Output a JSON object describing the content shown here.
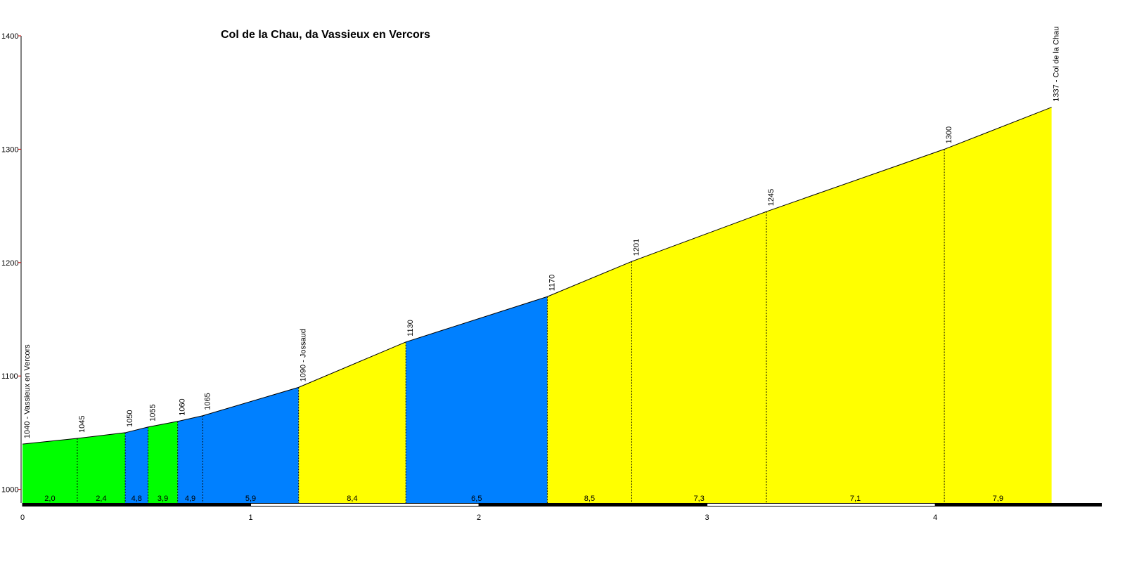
{
  "chart_data": {
    "type": "elevation-profile",
    "title": "Col de la Chau, da Vassieux en Vercors",
    "x": [
      0,
      0.24,
      0.45,
      0.55,
      0.68,
      0.79,
      1.21,
      1.68,
      2.3,
      2.67,
      3.26,
      4.04,
      4.51
    ],
    "values": [
      1040,
      1045,
      1050,
      1055,
      1060,
      1065,
      1090,
      1130,
      1170,
      1201,
      1245,
      1300,
      1337
    ],
    "value_labels": [
      "1040 - Vassieux en Vercors",
      "1045",
      "1050",
      "1055",
      "1060",
      "1065",
      "1090 - Jossaud",
      "1130",
      "1170",
      "1201",
      "1245",
      "1300",
      "1337 - Col de la Chau"
    ],
    "grades": [
      2.0,
      2.4,
      4.8,
      3.9,
      4.9,
      5.9,
      8.4,
      6.5,
      8.5,
      7.3,
      7.1,
      7.9
    ],
    "grade_labels": [
      "2,0",
      "2,4",
      "4,8",
      "3,9",
      "4,9",
      "5,9",
      "8,4",
      "6,5",
      "8,5",
      "7,3",
      "7,1",
      "7,9"
    ],
    "segment_colors": [
      "#00ff00",
      "#00ff00",
      "#0080ff",
      "#00ff00",
      "#0080ff",
      "#0080ff",
      "#ffff00",
      "#0080ff",
      "#ffff00",
      "#ffff00",
      "#ffff00",
      "#ffff00"
    ],
    "xlim": [
      0,
      4.73
    ],
    "ylim": [
      988,
      1400
    ],
    "xticks": [
      0,
      1,
      2,
      3,
      4
    ],
    "yticks": [
      1000,
      1100,
      1200,
      1300,
      1400
    ]
  }
}
